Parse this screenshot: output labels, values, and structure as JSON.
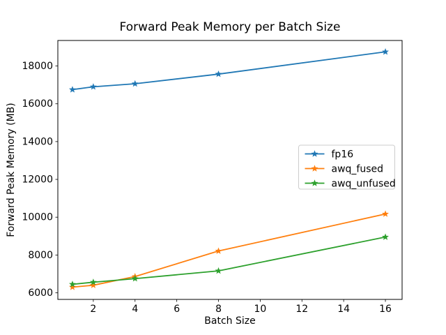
{
  "figure": {
    "background": "#ffffff"
  },
  "chart_data": {
    "type": "line",
    "title": "Forward Peak Memory per Batch Size",
    "xlabel": "Batch Size",
    "ylabel": "Forward Peak Memory (MB)",
    "x": [
      1,
      2,
      4,
      8,
      16
    ],
    "series": [
      {
        "name": "fp16",
        "color": "#1f77b4",
        "marker": "star",
        "values": [
          16750,
          16900,
          17060,
          17570,
          18750
        ]
      },
      {
        "name": "awq_fused",
        "color": "#ff7f0e",
        "marker": "star",
        "values": [
          6300,
          6400,
          6860,
          8210,
          10170
        ]
      },
      {
        "name": "awq_unfused",
        "color": "#2ca02c",
        "marker": "star",
        "values": [
          6450,
          6560,
          6750,
          7160,
          8950
        ]
      }
    ],
    "xticks": [
      2,
      4,
      6,
      8,
      10,
      12,
      14,
      16
    ],
    "yticks": [
      6000,
      8000,
      10000,
      12000,
      14000,
      16000,
      18000
    ],
    "xlim": [
      0.3,
      16.8
    ],
    "ylim": [
      5650,
      19350
    ],
    "grid": false,
    "legend_position": "center-right",
    "axis_color": "#000000",
    "legend_border_color": "#cccccc"
  }
}
